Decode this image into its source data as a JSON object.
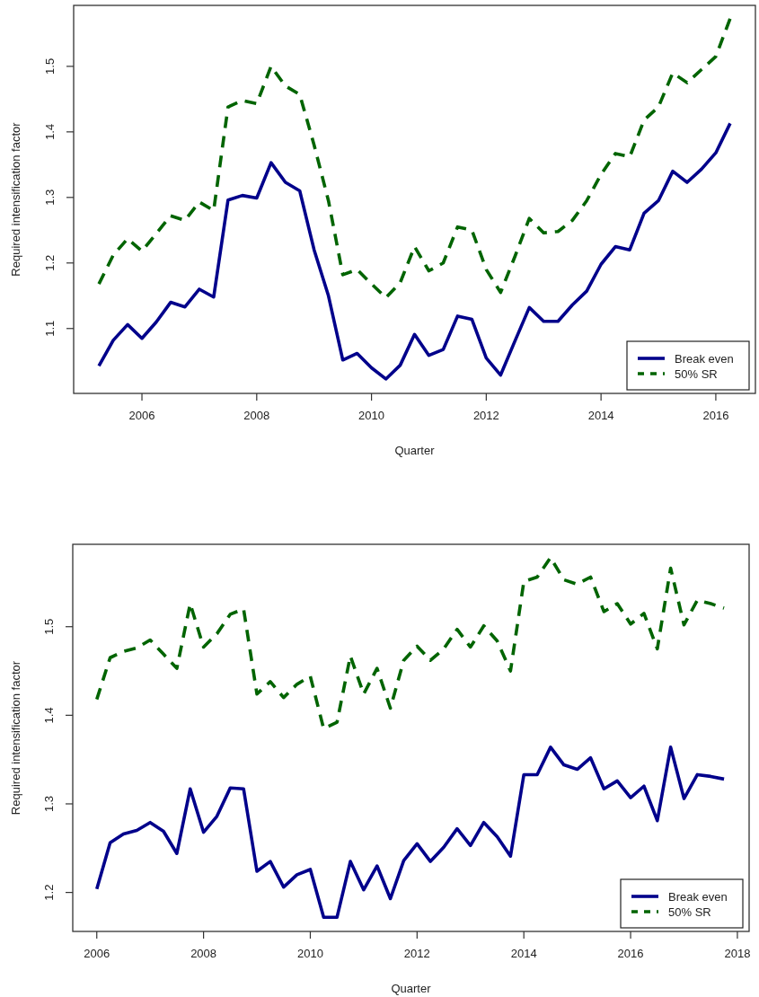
{
  "chart_data": [
    {
      "type": "line",
      "xlabel": "Quarter",
      "ylabel": "Required intensification factor",
      "xlim": [
        2004.81,
        2016.69
      ],
      "xticks": [
        2006,
        2008,
        2010,
        2012,
        2014,
        2016
      ],
      "ylim": [
        1.001,
        1.593
      ],
      "yticks": [
        1.1,
        1.2,
        1.3,
        1.4,
        1.5
      ],
      "legend": "bottom right",
      "grid": false,
      "x": [
        2005.25,
        2005.5,
        2005.75,
        2006,
        2006.25,
        2006.5,
        2006.75,
        2007,
        2007.25,
        2007.5,
        2007.75,
        2008,
        2008.25,
        2008.5,
        2008.75,
        2009,
        2009.25,
        2009.5,
        2009.75,
        2010,
        2010.25,
        2010.5,
        2010.75,
        2011,
        2011.25,
        2011.5,
        2011.75,
        2012,
        2012.25,
        2012.5,
        2012.75,
        2013,
        2013.25,
        2013.5,
        2013.75,
        2014,
        2014.25,
        2014.5,
        2014.75,
        2015,
        2015.25,
        2015.5,
        2015.75,
        2016,
        2016.25
      ],
      "series": [
        {
          "name": "Break even",
          "color": "#00008b",
          "line_style": "solid",
          "values": [
            1.043,
            1.082,
            1.106,
            1.085,
            1.11,
            1.14,
            1.133,
            1.16,
            1.148,
            1.296,
            1.303,
            1.299,
            1.353,
            1.323,
            1.31,
            1.22,
            1.15,
            1.052,
            1.062,
            1.04,
            1.023,
            1.044,
            1.091,
            1.059,
            1.068,
            1.119,
            1.114,
            1.055,
            1.029,
            1.081,
            1.132,
            1.111,
            1.111,
            1.136,
            1.157,
            1.198,
            1.225,
            1.22,
            1.276,
            1.295,
            1.34,
            1.323,
            1.343,
            1.368,
            1.413
          ]
        },
        {
          "name": "50% SR",
          "color": "#006400",
          "line_style": "dashed",
          "values": [
            1.168,
            1.212,
            1.237,
            1.218,
            1.245,
            1.272,
            1.265,
            1.293,
            1.28,
            1.438,
            1.448,
            1.443,
            1.5,
            1.47,
            1.457,
            1.38,
            1.295,
            1.182,
            1.19,
            1.168,
            1.147,
            1.17,
            1.225,
            1.188,
            1.2,
            1.255,
            1.25,
            1.19,
            1.155,
            1.21,
            1.268,
            1.246,
            1.248,
            1.265,
            1.295,
            1.335,
            1.367,
            1.362,
            1.418,
            1.438,
            1.49,
            1.475,
            1.495,
            1.515,
            1.573
          ]
        }
      ]
    },
    {
      "type": "line",
      "xlabel": "Quarter",
      "ylabel": "Required intensification factor",
      "xlim": [
        2005.55,
        2018.22
      ],
      "xticks": [
        2006,
        2008,
        2010,
        2012,
        2014,
        2016,
        2018
      ],
      "ylim": [
        1.156,
        1.593
      ],
      "yticks": [
        1.2,
        1.3,
        1.4,
        1.5
      ],
      "legend": "bottom right",
      "grid": false,
      "x": [
        2006,
        2006.25,
        2006.5,
        2006.75,
        2007,
        2007.25,
        2007.5,
        2007.75,
        2008,
        2008.25,
        2008.5,
        2008.75,
        2009,
        2009.25,
        2009.5,
        2009.75,
        2010,
        2010.25,
        2010.5,
        2010.75,
        2011,
        2011.25,
        2011.5,
        2011.75,
        2012,
        2012.25,
        2012.5,
        2012.75,
        2013,
        2013.25,
        2013.5,
        2013.75,
        2014,
        2014.25,
        2014.5,
        2014.75,
        2015,
        2015.25,
        2015.5,
        2015.75,
        2016,
        2016.25,
        2016.5,
        2016.75,
        2017,
        2017.25,
        2017.5,
        2017.75
      ],
      "series": [
        {
          "name": "Break even",
          "color": "#00008b",
          "line_style": "solid",
          "values": [
            1.204,
            1.256,
            1.266,
            1.27,
            1.279,
            1.269,
            1.244,
            1.317,
            1.268,
            1.286,
            1.318,
            1.317,
            1.224,
            1.235,
            1.206,
            1.22,
            1.226,
            1.172,
            1.172,
            1.235,
            1.203,
            1.23,
            1.193,
            1.236,
            1.255,
            1.235,
            1.251,
            1.272,
            1.253,
            1.279,
            1.263,
            1.241,
            1.333,
            1.333,
            1.364,
            1.344,
            1.339,
            1.352,
            1.317,
            1.326,
            1.307,
            1.32,
            1.281,
            1.364,
            1.306,
            1.333,
            1.331,
            1.328
          ]
        },
        {
          "name": "50% SR",
          "color": "#006400",
          "line_style": "dashed",
          "values": [
            1.418,
            1.465,
            1.472,
            1.476,
            1.485,
            1.469,
            1.453,
            1.526,
            1.477,
            1.492,
            1.514,
            1.52,
            1.424,
            1.438,
            1.42,
            1.435,
            1.444,
            1.385,
            1.392,
            1.467,
            1.424,
            1.453,
            1.408,
            1.462,
            1.478,
            1.462,
            1.475,
            1.497,
            1.477,
            1.501,
            1.484,
            1.45,
            1.551,
            1.556,
            1.578,
            1.553,
            1.548,
            1.556,
            1.517,
            1.526,
            1.503,
            1.515,
            1.475,
            1.566,
            1.502,
            1.53,
            1.526,
            1.521
          ]
        }
      ]
    }
  ]
}
